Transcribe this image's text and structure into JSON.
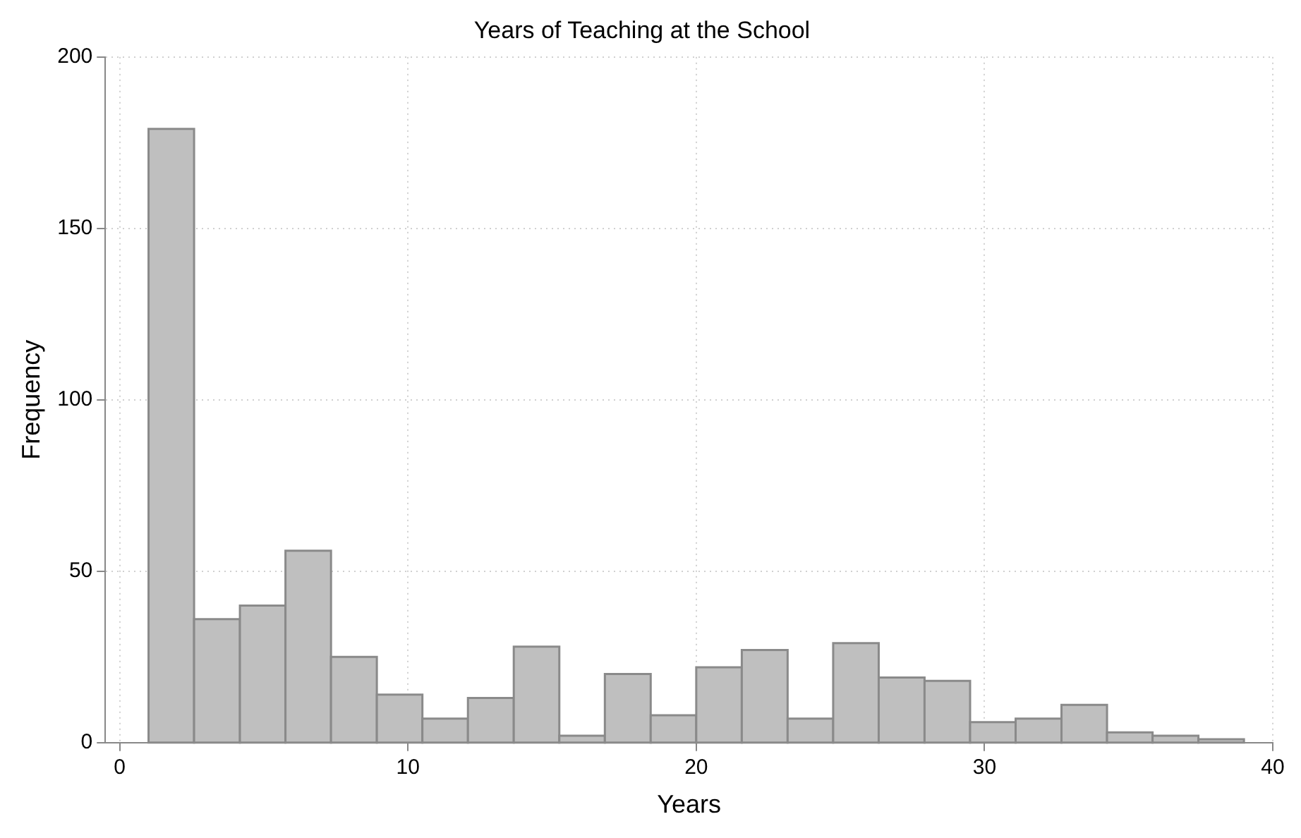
{
  "chart_data": {
    "type": "histogram",
    "title": "Years of Teaching at the School",
    "xlabel": "Years",
    "ylabel": "Frequency",
    "bins": [
      1,
      2.58,
      4.17,
      5.75,
      7.33,
      8.92,
      10.5,
      12.08,
      13.67,
      15.25,
      16.83,
      18.42,
      20,
      21.58,
      23.17,
      24.75,
      26.33,
      27.92,
      29.5,
      31.08,
      32.67,
      34.25,
      35.83,
      37.42,
      39
    ],
    "values": [
      179,
      36,
      40,
      56,
      25,
      14,
      7,
      13,
      28,
      2,
      20,
      8,
      22,
      27,
      7,
      29,
      19,
      18,
      6,
      7,
      11,
      3,
      2,
      1
    ],
    "color": "#bfbfbf",
    "xlim": [
      -0.5,
      40
    ],
    "xticks": [
      0,
      10,
      20,
      30,
      40
    ],
    "ylim": [
      0,
      200
    ],
    "yticks": [
      0,
      50,
      100,
      150,
      200
    ],
    "grid": true,
    "legend": false
  }
}
